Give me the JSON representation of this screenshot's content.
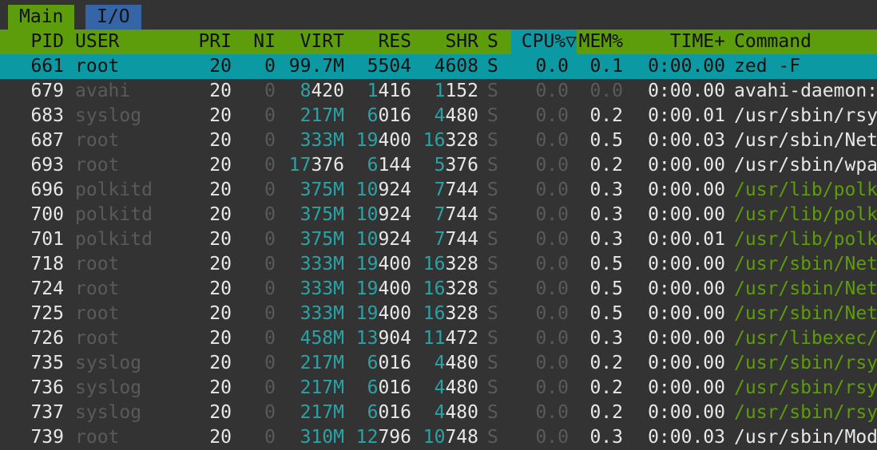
{
  "tabs": [
    {
      "label": "Main"
    },
    {
      "label": "I/O"
    }
  ],
  "header": {
    "pid": "PID",
    "user": "USER",
    "pri": "PRI",
    "ni": "NI",
    "virt": "VIRT",
    "res": "RES",
    "shr": "SHR",
    "s": "S",
    "cpu": "CPU%▽",
    "mem": "MEM%",
    "time": "TIME+",
    "command": "Command"
  },
  "rows": [
    {
      "pid": "661",
      "user": "root",
      "pri": "20",
      "ni": "0",
      "virt_hi": "99.7M",
      "virt_lo": "",
      "res_hi": "5504",
      "res_lo": "",
      "shr_hi": "4608",
      "shr_lo": "",
      "s": "S",
      "cpu": "0.0",
      "mem": "0.1",
      "time": "0:00.00",
      "command": "zed -F",
      "selected": true
    },
    {
      "pid": "679",
      "user": "avahi",
      "pri": "20",
      "ni": "0",
      "virt_hi": "8",
      "virt_lo": "420",
      "res_hi": "1",
      "res_lo": "416",
      "shr_hi": "1",
      "shr_lo": "152",
      "s": "S",
      "cpu": "0.0",
      "mem": "0.0",
      "time": "0:00.00",
      "command": "avahi-daemon:"
    },
    {
      "pid": "683",
      "user": "syslog",
      "pri": "20",
      "ni": "0",
      "virt_hi": "217M",
      "virt_lo": "",
      "res_hi": "6",
      "res_lo": "016",
      "shr_hi": "4",
      "shr_lo": "480",
      "s": "S",
      "cpu": "0.0",
      "mem": "0.2",
      "time": "0:00.01",
      "command": "/usr/sbin/rsy"
    },
    {
      "pid": "687",
      "user": "root",
      "pri": "20",
      "ni": "0",
      "virt_hi": "333M",
      "virt_lo": "",
      "res_hi": "19",
      "res_lo": "400",
      "shr_hi": "16",
      "shr_lo": "328",
      "s": "S",
      "cpu": "0.0",
      "mem": "0.5",
      "time": "0:00.03",
      "command": "/usr/sbin/Net"
    },
    {
      "pid": "693",
      "user": "root",
      "pri": "20",
      "ni": "0",
      "virt_hi": "17",
      "virt_lo": "376",
      "res_hi": "6",
      "res_lo": "144",
      "shr_hi": "5",
      "shr_lo": "376",
      "s": "S",
      "cpu": "0.0",
      "mem": "0.2",
      "time": "0:00.00",
      "command": "/usr/sbin/wpa"
    },
    {
      "pid": "696",
      "user": "polkitd",
      "pri": "20",
      "ni": "0",
      "virt_hi": "375M",
      "virt_lo": "",
      "res_hi": "10",
      "res_lo": "924",
      "shr_hi": "7",
      "shr_lo": "744",
      "s": "S",
      "cpu": "0.0",
      "mem": "0.3",
      "time": "0:00.00",
      "command": "/usr/lib/polk",
      "thread": true
    },
    {
      "pid": "700",
      "user": "polkitd",
      "pri": "20",
      "ni": "0",
      "virt_hi": "375M",
      "virt_lo": "",
      "res_hi": "10",
      "res_lo": "924",
      "shr_hi": "7",
      "shr_lo": "744",
      "s": "S",
      "cpu": "0.0",
      "mem": "0.3",
      "time": "0:00.00",
      "command": "/usr/lib/polk",
      "thread": true
    },
    {
      "pid": "701",
      "user": "polkitd",
      "pri": "20",
      "ni": "0",
      "virt_hi": "375M",
      "virt_lo": "",
      "res_hi": "10",
      "res_lo": "924",
      "shr_hi": "7",
      "shr_lo": "744",
      "s": "S",
      "cpu": "0.0",
      "mem": "0.3",
      "time": "0:00.01",
      "command": "/usr/lib/polk",
      "thread": true
    },
    {
      "pid": "718",
      "user": "root",
      "pri": "20",
      "ni": "0",
      "virt_hi": "333M",
      "virt_lo": "",
      "res_hi": "19",
      "res_lo": "400",
      "shr_hi": "16",
      "shr_lo": "328",
      "s": "S",
      "cpu": "0.0",
      "mem": "0.5",
      "time": "0:00.00",
      "command": "/usr/sbin/Net",
      "thread": true
    },
    {
      "pid": "724",
      "user": "root",
      "pri": "20",
      "ni": "0",
      "virt_hi": "333M",
      "virt_lo": "",
      "res_hi": "19",
      "res_lo": "400",
      "shr_hi": "16",
      "shr_lo": "328",
      "s": "S",
      "cpu": "0.0",
      "mem": "0.5",
      "time": "0:00.00",
      "command": "/usr/sbin/Net",
      "thread": true
    },
    {
      "pid": "725",
      "user": "root",
      "pri": "20",
      "ni": "0",
      "virt_hi": "333M",
      "virt_lo": "",
      "res_hi": "19",
      "res_lo": "400",
      "shr_hi": "16",
      "shr_lo": "328",
      "s": "S",
      "cpu": "0.0",
      "mem": "0.5",
      "time": "0:00.00",
      "command": "/usr/sbin/Net",
      "thread": true
    },
    {
      "pid": "726",
      "user": "root",
      "pri": "20",
      "ni": "0",
      "virt_hi": "458M",
      "virt_lo": "",
      "res_hi": "13",
      "res_lo": "904",
      "shr_hi": "11",
      "shr_lo": "472",
      "s": "S",
      "cpu": "0.0",
      "mem": "0.3",
      "time": "0:00.00",
      "command": "/usr/libexec/",
      "thread": true
    },
    {
      "pid": "735",
      "user": "syslog",
      "pri": "20",
      "ni": "0",
      "virt_hi": "217M",
      "virt_lo": "",
      "res_hi": "6",
      "res_lo": "016",
      "shr_hi": "4",
      "shr_lo": "480",
      "s": "S",
      "cpu": "0.0",
      "mem": "0.2",
      "time": "0:00.00",
      "command": "/usr/sbin/rsy",
      "thread": true
    },
    {
      "pid": "736",
      "user": "syslog",
      "pri": "20",
      "ni": "0",
      "virt_hi": "217M",
      "virt_lo": "",
      "res_hi": "6",
      "res_lo": "016",
      "shr_hi": "4",
      "shr_lo": "480",
      "s": "S",
      "cpu": "0.0",
      "mem": "0.2",
      "time": "0:00.00",
      "command": "/usr/sbin/rsy",
      "thread": true
    },
    {
      "pid": "737",
      "user": "syslog",
      "pri": "20",
      "ni": "0",
      "virt_hi": "217M",
      "virt_lo": "",
      "res_hi": "6",
      "res_lo": "016",
      "shr_hi": "4",
      "shr_lo": "480",
      "s": "S",
      "cpu": "0.0",
      "mem": "0.2",
      "time": "0:00.00",
      "command": "/usr/sbin/rsy",
      "thread": true
    },
    {
      "pid": "739",
      "user": "root",
      "pri": "20",
      "ni": "0",
      "virt_hi": "310M",
      "virt_lo": "",
      "res_hi": "12",
      "res_lo": "796",
      "shr_hi": "10",
      "shr_lo": "748",
      "s": "S",
      "cpu": "0.0",
      "mem": "0.3",
      "time": "0:00.03",
      "command": "/usr/sbin/Mod"
    }
  ],
  "colors": {
    "background": "#333333",
    "header_bg": "#5d9c0a",
    "selected_bg": "#0b9aa3",
    "tab_io_bg": "#3565a6",
    "dim_text": "#5a5a5a",
    "teal_text": "#2aa3a6",
    "thread_text": "#5d9c0a"
  }
}
